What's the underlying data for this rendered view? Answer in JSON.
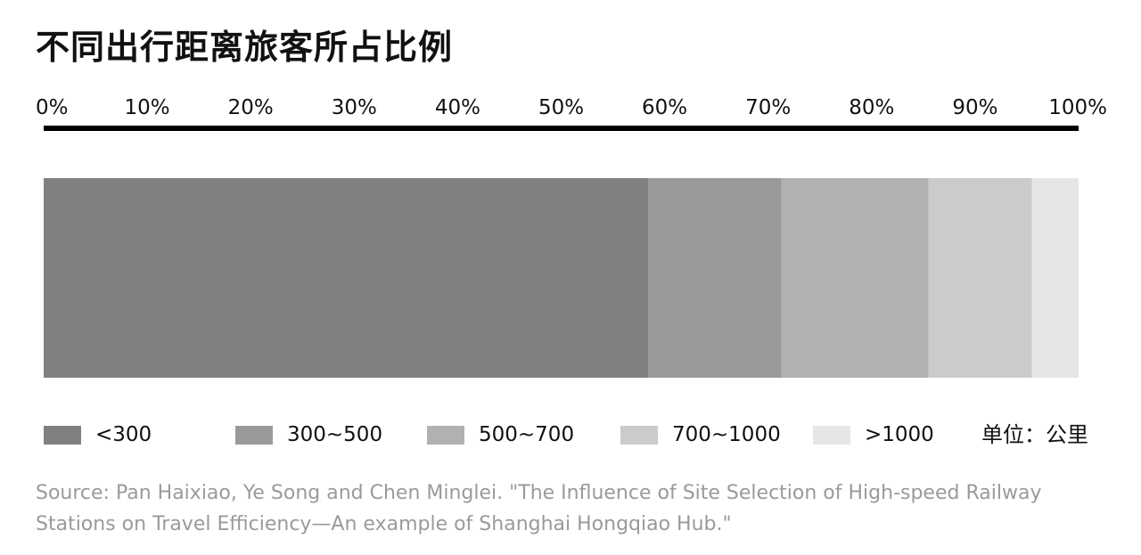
{
  "chart_data": {
    "type": "bar",
    "orientation": "horizontal-stacked",
    "title": "不同出行距离旅客所占比例",
    "unit": "单位：公里",
    "xlim": [
      0,
      100
    ],
    "ticks": [
      "0%",
      "10%",
      "20%",
      "30%",
      "40%",
      "50%",
      "60%",
      "70%",
      "80%",
      "90%",
      "100%"
    ],
    "tick_values": [
      0,
      10,
      20,
      30,
      40,
      50,
      60,
      70,
      80,
      90,
      100
    ],
    "legend_position": "bottom",
    "grid": false,
    "series": [
      {
        "name": "<300",
        "value": 58.4,
        "color": "#808080"
      },
      {
        "name": "300~500",
        "value": 12.9,
        "color": "#9a9a9a"
      },
      {
        "name": "500~700",
        "value": 14.2,
        "color": "#b1b1b1"
      },
      {
        "name": "700~1000",
        "value": 10.0,
        "color": "#cbcbcb"
      },
      {
        "name": ">1000",
        "value": 4.5,
        "color": "#e6e6e6"
      }
    ]
  },
  "source": "Source: Pan Haixiao, Ye Song and Chen Minglei. \"The Influence of Site Selection of High-speed Railway Stations on Travel Efficiency—An example of Shanghai Hongqiao Hub.\""
}
